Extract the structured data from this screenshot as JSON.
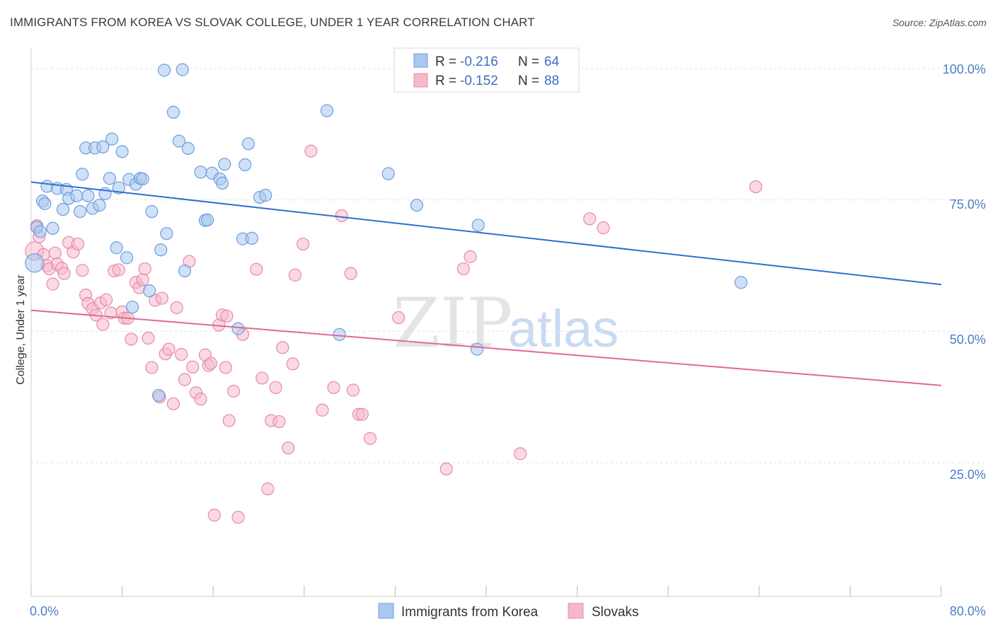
{
  "title": "IMMIGRANTS FROM KOREA VS SLOVAK COLLEGE, UNDER 1 YEAR CORRELATION CHART",
  "source": "Source: ZipAtlas.com",
  "colors": {
    "korea_fill": "#a9c8ef",
    "korea_stroke": "#6b9ee0",
    "korea_line": "#2e6fd1",
    "slovak_fill": "#f5b9cc",
    "slovak_stroke": "#e68aa8",
    "slovak_line": "#e06a95",
    "grid": "#dddddd",
    "tick_text": "#4a7fc8"
  },
  "stats_legend": [
    {
      "r_label": "R = ",
      "r_value": "-0.216",
      "n_label": "N = ",
      "n_value": "64"
    },
    {
      "r_label": "R = ",
      "r_value": "-0.152",
      "n_label": "N = ",
      "n_value": "88"
    }
  ],
  "watermark": {
    "zip": "ZIP",
    "atlas": "atlas"
  },
  "chart_data": {
    "type": "scatter",
    "xlabel": "",
    "ylabel": "College, Under 1 year",
    "xlim": [
      0,
      80
    ],
    "ylim": [
      0,
      105
    ],
    "x_tick_labels": [
      "0.0%",
      "80.0%"
    ],
    "y_ticks": [
      {
        "value": 100,
        "label": "100.0%"
      },
      {
        "value": 75,
        "label": "75.0%"
      },
      {
        "value": 50,
        "label": "50.0%"
      },
      {
        "value": 25,
        "label": "25.0%"
      }
    ],
    "grid": true,
    "legend_position": "bottom-center",
    "series": [
      {
        "name": "Immigrants from Korea",
        "trend": {
          "x": [
            0,
            80
          ],
          "y": [
            78.4,
            58.9
          ]
        },
        "points": [
          [
            0.3,
            63.0
          ],
          [
            0.5,
            69.8
          ],
          [
            1.0,
            74.8
          ],
          [
            1.2,
            74.3
          ],
          [
            1.4,
            77.6
          ],
          [
            1.9,
            69.6
          ],
          [
            2.3,
            77.2
          ],
          [
            2.8,
            73.2
          ],
          [
            3.1,
            77.0
          ],
          [
            3.3,
            75.3
          ],
          [
            4.0,
            75.8
          ],
          [
            4.3,
            72.8
          ],
          [
            4.5,
            79.9
          ],
          [
            4.8,
            84.9
          ],
          [
            5.0,
            75.8
          ],
          [
            5.4,
            73.4
          ],
          [
            5.6,
            84.9
          ],
          [
            6.0,
            74.0
          ],
          [
            6.3,
            85.1
          ],
          [
            6.5,
            76.2
          ],
          [
            6.9,
            79.1
          ],
          [
            7.1,
            86.6
          ],
          [
            7.5,
            65.9
          ],
          [
            7.7,
            77.3
          ],
          [
            8.0,
            84.2
          ],
          [
            8.4,
            64.0
          ],
          [
            8.6,
            78.9
          ],
          [
            8.9,
            54.6
          ],
          [
            9.2,
            78.0
          ],
          [
            9.6,
            79.1
          ],
          [
            9.8,
            79.0
          ],
          [
            10.4,
            57.7
          ],
          [
            10.6,
            72.8
          ],
          [
            11.2,
            37.8
          ],
          [
            11.4,
            65.5
          ],
          [
            11.7,
            99.7
          ],
          [
            11.9,
            68.6
          ],
          [
            12.5,
            91.7
          ],
          [
            13.0,
            86.2
          ],
          [
            13.3,
            99.8
          ],
          [
            13.5,
            61.5
          ],
          [
            13.8,
            84.8
          ],
          [
            14.9,
            80.3
          ],
          [
            15.3,
            71.1
          ],
          [
            15.5,
            71.2
          ],
          [
            15.9,
            80.1
          ],
          [
            16.6,
            79.0
          ],
          [
            16.8,
            78.2
          ],
          [
            17.0,
            81.8
          ],
          [
            18.2,
            50.5
          ],
          [
            18.6,
            67.6
          ],
          [
            18.8,
            81.7
          ],
          [
            19.1,
            85.7
          ],
          [
            19.4,
            67.7
          ],
          [
            20.1,
            75.5
          ],
          [
            20.6,
            75.9
          ],
          [
            26.0,
            92.0
          ],
          [
            27.1,
            49.4
          ],
          [
            31.4,
            80.0
          ],
          [
            33.9,
            74.0
          ],
          [
            39.2,
            46.6
          ],
          [
            39.3,
            70.2
          ],
          [
            62.4,
            59.3
          ],
          [
            0.8,
            69.0
          ]
        ]
      },
      {
        "name": "Slovaks",
        "trend": {
          "x": [
            0,
            80
          ],
          "y": [
            54.0,
            39.7
          ]
        },
        "points": [
          [
            0.3,
            65.3
          ],
          [
            0.5,
            70.1
          ],
          [
            0.7,
            68.0
          ],
          [
            1.1,
            64.6
          ],
          [
            1.4,
            62.5
          ],
          [
            1.6,
            61.9
          ],
          [
            1.9,
            59.0
          ],
          [
            2.1,
            64.9
          ],
          [
            2.3,
            62.8
          ],
          [
            2.7,
            62.0
          ],
          [
            2.9,
            61.0
          ],
          [
            3.3,
            66.9
          ],
          [
            3.7,
            65.1
          ],
          [
            4.1,
            66.6
          ],
          [
            4.5,
            61.6
          ],
          [
            4.8,
            56.9
          ],
          [
            5.0,
            55.3
          ],
          [
            5.4,
            54.3
          ],
          [
            5.7,
            53.1
          ],
          [
            6.1,
            55.4
          ],
          [
            6.3,
            51.3
          ],
          [
            6.6,
            56.0
          ],
          [
            7.0,
            53.5
          ],
          [
            7.3,
            61.5
          ],
          [
            7.7,
            61.7
          ],
          [
            8.0,
            53.7
          ],
          [
            8.2,
            52.5
          ],
          [
            8.5,
            52.5
          ],
          [
            8.8,
            48.5
          ],
          [
            9.2,
            59.3
          ],
          [
            9.5,
            58.3
          ],
          [
            9.8,
            59.8
          ],
          [
            10.0,
            61.9
          ],
          [
            10.3,
            48.7
          ],
          [
            10.6,
            43.1
          ],
          [
            10.9,
            55.9
          ],
          [
            11.3,
            37.5
          ],
          [
            11.5,
            56.3
          ],
          [
            11.8,
            45.7
          ],
          [
            12.1,
            46.6
          ],
          [
            12.5,
            36.2
          ],
          [
            12.8,
            54.5
          ],
          [
            13.2,
            45.6
          ],
          [
            13.5,
            40.8
          ],
          [
            13.9,
            63.3
          ],
          [
            14.2,
            43.2
          ],
          [
            14.5,
            38.3
          ],
          [
            14.9,
            37.1
          ],
          [
            15.3,
            45.5
          ],
          [
            15.6,
            43.5
          ],
          [
            15.8,
            43.9
          ],
          [
            16.1,
            15.0
          ],
          [
            16.5,
            51.2
          ],
          [
            16.8,
            53.1
          ],
          [
            17.1,
            43.1
          ],
          [
            17.4,
            33.0
          ],
          [
            17.8,
            38.6
          ],
          [
            18.2,
            14.6
          ],
          [
            18.6,
            49.4
          ],
          [
            19.8,
            61.8
          ],
          [
            20.3,
            41.1
          ],
          [
            20.8,
            20.0
          ],
          [
            21.1,
            33.0
          ],
          [
            21.5,
            39.3
          ],
          [
            21.8,
            32.8
          ],
          [
            22.1,
            46.9
          ],
          [
            22.6,
            27.8
          ],
          [
            23.0,
            43.8
          ],
          [
            23.2,
            60.7
          ],
          [
            23.9,
            66.6
          ],
          [
            24.6,
            84.3
          ],
          [
            25.6,
            35.0
          ],
          [
            26.6,
            39.3
          ],
          [
            27.3,
            72.0
          ],
          [
            28.1,
            61.0
          ],
          [
            28.3,
            38.8
          ],
          [
            28.8,
            34.2
          ],
          [
            29.1,
            34.2
          ],
          [
            29.8,
            29.6
          ],
          [
            32.3,
            52.6
          ],
          [
            36.5,
            23.8
          ],
          [
            38.0,
            61.9
          ],
          [
            38.6,
            64.2
          ],
          [
            43.0,
            26.7
          ],
          [
            49.1,
            71.4
          ],
          [
            50.3,
            69.7
          ],
          [
            63.7,
            77.5
          ],
          [
            17.2,
            52.9
          ]
        ]
      }
    ]
  }
}
